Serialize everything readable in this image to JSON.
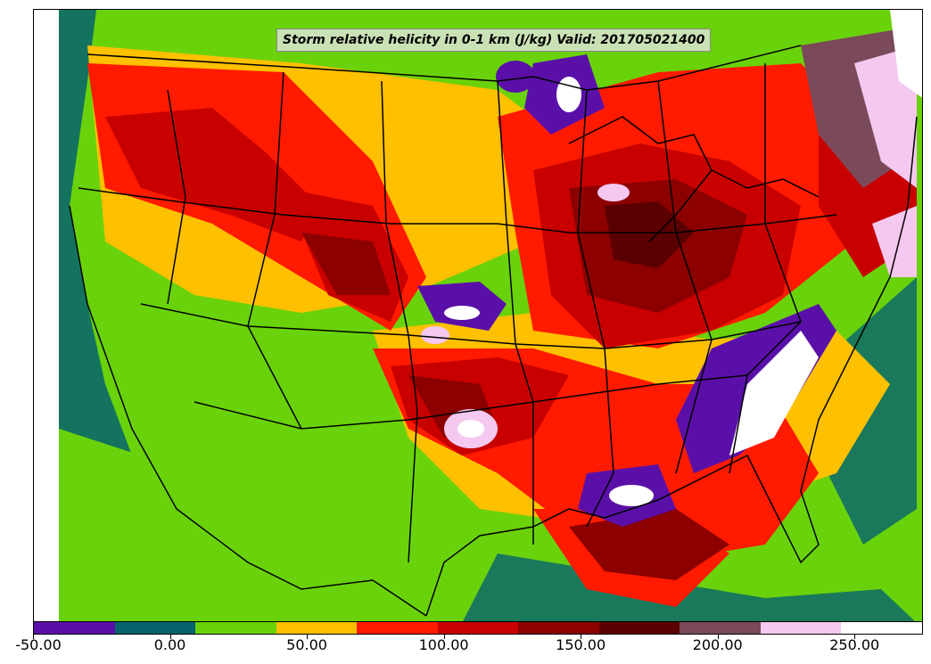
{
  "title": "Storm relative helicity in 0-1 km (J/kg) Valid: 201705021400",
  "colorbar": {
    "min": -50,
    "max": 275,
    "step": 25,
    "colors": [
      "#5a10a8",
      "#05636e",
      "#6ad20a",
      "#ffc000",
      "#ff1a00",
      "#c80000",
      "#8c0000",
      "#5a0000",
      "#7a4a5a",
      "#f5c8f0",
      "#ffffff"
    ],
    "tick_values": [
      -50,
      0,
      50,
      100,
      150,
      200,
      250
    ],
    "tick_labels": [
      "-50.00",
      "0.00",
      "50.00",
      "100.00",
      "150.00",
      "200.00",
      "250.00"
    ]
  },
  "colors": {
    "ocean_base": "#6ad20a",
    "coast": "#05636e",
    "boundaries": "#000000"
  }
}
